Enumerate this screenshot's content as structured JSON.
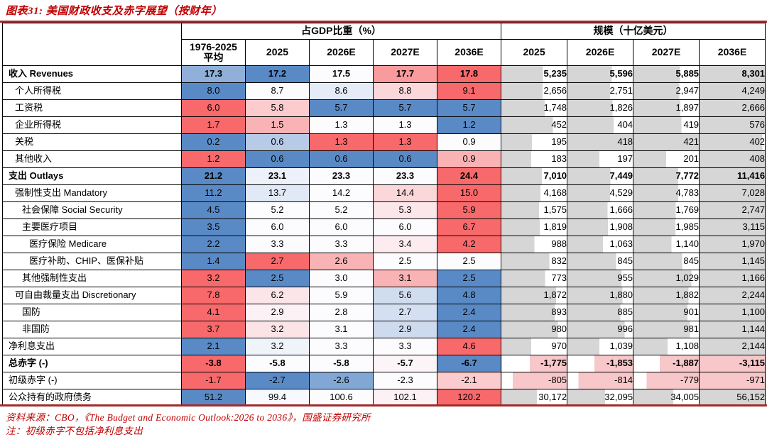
{
  "title": "图表31: 美国财政收支及赤字展望（按财年）",
  "table": {
    "corner_label": "",
    "group_gdp": "占GDP比重（%）",
    "group_scale": "规模（十亿美元）",
    "gdp_cols": [
      "1976-2025\n平均",
      "2025",
      "2026E",
      "2027E",
      "2036E"
    ],
    "scale_cols": [
      "2025",
      "2026E",
      "2027E",
      "2036E"
    ]
  },
  "rows": [
    {
      "label": "收入 Revenues",
      "level": 0,
      "bold": true,
      "gdp": [
        "17.3",
        "17.2",
        "17.5",
        "17.7",
        "17.8"
      ],
      "scale": [
        "5,235",
        "5,596",
        "5,885",
        "8,301"
      ]
    },
    {
      "label": "个人所得税",
      "level": 1,
      "bold": false,
      "gdp": [
        "8.0",
        "8.7",
        "8.6",
        "8.8",
        "9.1"
      ],
      "scale": [
        "2,656",
        "2,751",
        "2,947",
        "4,249"
      ]
    },
    {
      "label": "工资税",
      "level": 1,
      "bold": false,
      "gdp": [
        "6.0",
        "5.8",
        "5.7",
        "5.7",
        "5.7"
      ],
      "scale": [
        "1,748",
        "1,826",
        "1,897",
        "2,666"
      ]
    },
    {
      "label": "企业所得税",
      "level": 1,
      "bold": false,
      "gdp": [
        "1.7",
        "1.5",
        "1.3",
        "1.3",
        "1.2"
      ],
      "scale": [
        "452",
        "404",
        "419",
        "576"
      ]
    },
    {
      "label": "关税",
      "level": 1,
      "bold": false,
      "gdp": [
        "0.2",
        "0.6",
        "1.3",
        "1.3",
        "0.9"
      ],
      "scale": [
        "195",
        "418",
        "421",
        "402"
      ]
    },
    {
      "label": "其他收入",
      "level": 1,
      "bold": false,
      "gdp": [
        "1.2",
        "0.6",
        "0.6",
        "0.6",
        "0.9"
      ],
      "scale": [
        "183",
        "197",
        "201",
        "408"
      ]
    },
    {
      "label": "支出 Outlays",
      "level": 0,
      "bold": true,
      "gdp": [
        "21.2",
        "23.1",
        "23.3",
        "23.3",
        "24.4"
      ],
      "scale": [
        "7,010",
        "7,449",
        "7,772",
        "11,416"
      ]
    },
    {
      "label": "强制性支出  Mandatory",
      "level": 1,
      "bold": false,
      "gdp": [
        "11.2",
        "13.7",
        "14.2",
        "14.4",
        "15.0"
      ],
      "scale": [
        "4,168",
        "4,529",
        "4,783",
        "7,028"
      ]
    },
    {
      "label": "社会保障 Social Security",
      "level": 2,
      "bold": false,
      "gdp": [
        "4.5",
        "5.2",
        "5.2",
        "5.3",
        "5.9"
      ],
      "scale": [
        "1,575",
        "1,666",
        "1,769",
        "2,747"
      ]
    },
    {
      "label": "主要医疗项目",
      "level": 2,
      "bold": false,
      "gdp": [
        "3.5",
        "6.0",
        "6.0",
        "6.0",
        "6.7"
      ],
      "scale": [
        "1,819",
        "1,908",
        "1,985",
        "3,115"
      ]
    },
    {
      "label": "医疗保险 Medicare",
      "level": 3,
      "bold": false,
      "gdp": [
        "2.2",
        "3.3",
        "3.3",
        "3.4",
        "4.2"
      ],
      "scale": [
        "988",
        "1,063",
        "1,140",
        "1,970"
      ]
    },
    {
      "label": "医疗补助、CHIP、医保补贴",
      "level": 3,
      "bold": false,
      "gdp": [
        "1.4",
        "2.7",
        "2.6",
        "2.5",
        "2.5"
      ],
      "scale": [
        "832",
        "845",
        "845",
        "1,145"
      ]
    },
    {
      "label": "其他强制性支出",
      "level": 2,
      "bold": false,
      "gdp": [
        "3.2",
        "2.5",
        "3.0",
        "3.1",
        "2.5"
      ],
      "scale": [
        "773",
        "955",
        "1,029",
        "1,166"
      ]
    },
    {
      "label": "可自由裁量支出 Discretionary",
      "level": 1,
      "bold": false,
      "gdp": [
        "7.8",
        "6.2",
        "5.9",
        "5.6",
        "4.8"
      ],
      "scale": [
        "1,872",
        "1,880",
        "1,882",
        "2,244"
      ]
    },
    {
      "label": "国防",
      "level": 2,
      "bold": false,
      "gdp": [
        "4.1",
        "2.9",
        "2.8",
        "2.7",
        "2.4"
      ],
      "scale": [
        "893",
        "885",
        "901",
        "1,100"
      ]
    },
    {
      "label": "非国防",
      "level": 2,
      "bold": false,
      "gdp": [
        "3.7",
        "3.2",
        "3.1",
        "2.9",
        "2.4"
      ],
      "scale": [
        "980",
        "996",
        "981",
        "1,144"
      ]
    },
    {
      "label": "净利息支出",
      "level": 0,
      "bold": false,
      "gdp": [
        "2.1",
        "3.2",
        "3.3",
        "3.3",
        "4.6"
      ],
      "scale": [
        "970",
        "1,039",
        "1,108",
        "2,144"
      ]
    },
    {
      "label": "总赤字 (-)",
      "level": 0,
      "bold": true,
      "gdp": [
        "-3.8",
        "-5.8",
        "-5.8",
        "-5.7",
        "-6.7"
      ],
      "scale": [
        "-1,775",
        "-1,853",
        "-1,887",
        "-3,115"
      ]
    },
    {
      "label": "初级赤字 (-)",
      "level": 0,
      "bold": false,
      "gdp": [
        "-1.7",
        "-2.7",
        "-2.6",
        "-2.3",
        "-2.1"
      ],
      "scale": [
        "-805",
        "-814",
        "-779",
        "-971"
      ]
    },
    {
      "label": "公众持有的政府债务",
      "level": 0,
      "bold": false,
      "gdp": [
        "51.2",
        "99.4",
        "100.6",
        "102.1",
        "120.2"
      ],
      "scale": [
        "30,172",
        "32,095",
        "34,005",
        "56,152"
      ]
    }
  ],
  "footer": {
    "source": "资料来源：CBO，《The Budget and Economic Outlook:2026 to 2036》，国盛证券研究所",
    "note": "注：初级赤字不包括净利息支出"
  },
  "colors": {
    "heat_min_blue": "#5A8AC6",
    "heat_mid_white": "#FCFCFF",
    "heat_max_red": "#F8696B",
    "bar_gray": "#D6D6D6",
    "bar_pink_negative": "#F7C7C9",
    "rule_maroon": "#A12A2A",
    "text_red": "#C00000"
  }
}
